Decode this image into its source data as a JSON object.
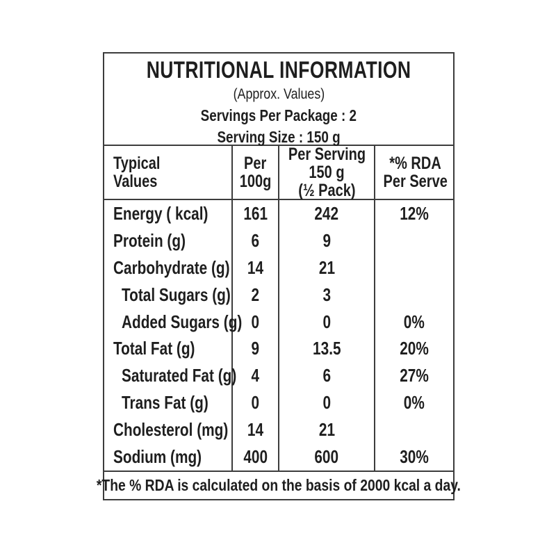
{
  "header": {
    "title": "NUTRITIONAL INFORMATION",
    "subtitle": "(Approx. Values)",
    "servings_per_package": "Servings Per Package : 2",
    "serving_size": "Serving Size : 150 g"
  },
  "table": {
    "columns": [
      {
        "lines": [
          "Typical",
          "Values"
        ]
      },
      {
        "lines": [
          "Per",
          "100g"
        ]
      },
      {
        "lines": [
          "Per Serving",
          "150 g",
          "(½ Pack)"
        ]
      },
      {
        "lines": [
          "*% RDA",
          "Per Serve"
        ]
      }
    ],
    "rows": [
      {
        "label": "Energy ( kcal)",
        "indent": false,
        "per_100g": "161",
        "per_serving": "242",
        "rda": "12%"
      },
      {
        "label": "Protein (g)",
        "indent": false,
        "per_100g": "6",
        "per_serving": "9",
        "rda": ""
      },
      {
        "label": "Carbohydrate (g)",
        "indent": false,
        "per_100g": "14",
        "per_serving": "21",
        "rda": ""
      },
      {
        "label": "Total Sugars (g)",
        "indent": true,
        "per_100g": "2",
        "per_serving": "3",
        "rda": ""
      },
      {
        "label": "Added Sugars (g)",
        "indent": true,
        "per_100g": "0",
        "per_serving": "0",
        "rda": "0%"
      },
      {
        "label": "Total Fat (g)",
        "indent": false,
        "per_100g": "9",
        "per_serving": "13.5",
        "rda": "20%"
      },
      {
        "label": "Saturated Fat (g)",
        "indent": true,
        "per_100g": "4",
        "per_serving": "6",
        "rda": "27%"
      },
      {
        "label": "Trans Fat (g)",
        "indent": true,
        "per_100g": "0",
        "per_serving": "0",
        "rda": "0%"
      },
      {
        "label": "Cholesterol (mg)",
        "indent": false,
        "per_100g": "14",
        "per_serving": "21",
        "rda": ""
      },
      {
        "label": "Sodium (mg)",
        "indent": false,
        "per_100g": "400",
        "per_serving": "600",
        "rda": "30%"
      }
    ],
    "footnote": "*The % RDA is calculated on the basis of 2000 kcal a day."
  },
  "colors": {
    "background": "#ffffff",
    "text": "#1e1e1e",
    "border": "#3c3c3c"
  }
}
